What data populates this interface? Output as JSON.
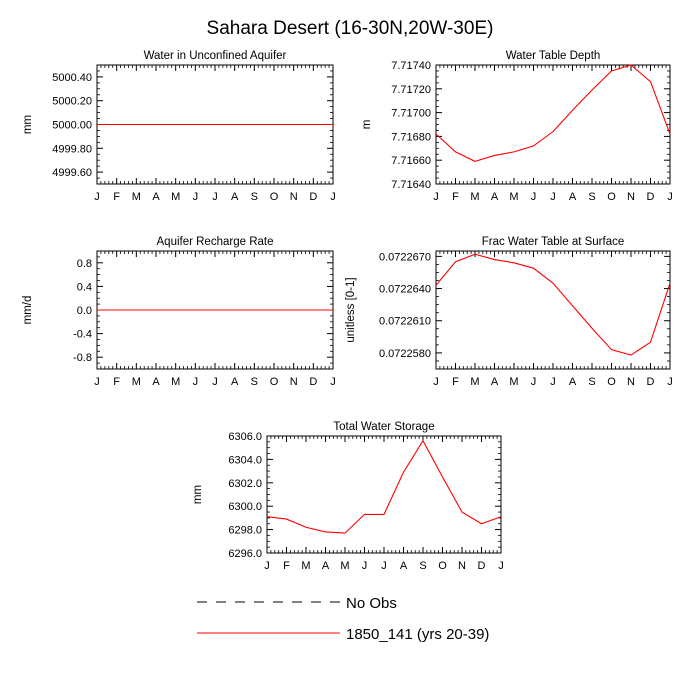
{
  "figure_title": "Sahara Desert (16-30N,20W-30E)",
  "legend": {
    "obs_label": "No Obs",
    "model_label": "1850_141 (yrs 20-39)",
    "model_color": "#ff0000",
    "obs_color": "#000000"
  },
  "chart_data": [
    {
      "type": "line",
      "title": "Water in Unconfined Aquifer",
      "ylabel": "mm",
      "categories": [
        "J",
        "F",
        "M",
        "A",
        "M",
        "J",
        "J",
        "A",
        "S",
        "O",
        "N",
        "D",
        "J"
      ],
      "yticks": [
        4999.6,
        4999.8,
        5000.0,
        5000.2,
        5000.4
      ],
      "ytick_labels": [
        "4999.60",
        "4999.80",
        "5000.00",
        "5000.20",
        "5000.40"
      ],
      "ylim": [
        4999.5,
        5000.5
      ],
      "series": [
        {
          "name": "1850_141 (yrs 20-39)",
          "values": [
            5000,
            5000,
            5000,
            5000,
            5000,
            5000,
            5000,
            5000,
            5000,
            5000,
            5000,
            5000,
            5000
          ]
        }
      ]
    },
    {
      "type": "line",
      "title": "Water Table Depth",
      "ylabel": "m",
      "categories": [
        "J",
        "F",
        "M",
        "A",
        "M",
        "J",
        "J",
        "A",
        "S",
        "O",
        "N",
        "D",
        "J"
      ],
      "yticks": [
        7.7164,
        7.7166,
        7.7168,
        7.717,
        7.7172,
        7.7174
      ],
      "ytick_labels": [
        "7.71640",
        "7.71660",
        "7.71680",
        "7.71700",
        "7.71720",
        "7.71740"
      ],
      "ylim": [
        7.7164,
        7.7174
      ],
      "series": [
        {
          "name": "1850_141 (yrs 20-39)",
          "values": [
            7.71682,
            7.71667,
            7.71659,
            7.71664,
            7.71667,
            7.71672,
            7.71684,
            7.71702,
            7.71719,
            7.71735,
            7.7174,
            7.71726,
            7.71682
          ]
        }
      ]
    },
    {
      "type": "line",
      "title": "Aquifer Recharge Rate",
      "ylabel": "mm/d",
      "categories": [
        "J",
        "F",
        "M",
        "A",
        "M",
        "J",
        "J",
        "A",
        "S",
        "O",
        "N",
        "D",
        "J"
      ],
      "yticks": [
        -0.8,
        -0.4,
        0.0,
        0.4,
        0.8
      ],
      "ytick_labels": [
        "-0.8",
        "-0.4",
        "0.0",
        "0.4",
        "0.8"
      ],
      "ylim": [
        -1.0,
        1.0
      ],
      "series": [
        {
          "name": "1850_141 (yrs 20-39)",
          "values": [
            0,
            0,
            0,
            0,
            0,
            0,
            0,
            0,
            0,
            0,
            0,
            0,
            0
          ]
        }
      ]
    },
    {
      "type": "line",
      "title": "Frac Water Table at Surface",
      "ylabel": "unitless [0-1]",
      "categories": [
        "J",
        "F",
        "M",
        "A",
        "M",
        "J",
        "J",
        "A",
        "S",
        "O",
        "N",
        "D",
        "J"
      ],
      "yticks": [
        0.072258,
        0.072261,
        0.072264,
        0.072267
      ],
      "ytick_labels": [
        "0.0722580",
        "0.0722610",
        "0.0722640",
        "0.0722670"
      ],
      "ylim": [
        0.0722565,
        0.0722675
      ],
      "series": [
        {
          "name": "1850_141 (yrs 20-39)",
          "values": [
            0.0722643,
            0.0722665,
            0.0722672,
            0.0722667,
            0.0722664,
            0.0722659,
            0.0722645,
            0.0722624,
            0.0722603,
            0.0722583,
            0.0722578,
            0.072259,
            0.0722645
          ]
        }
      ]
    },
    {
      "type": "line",
      "title": "Total Water Storage",
      "ylabel": "mm",
      "categories": [
        "J",
        "F",
        "M",
        "A",
        "M",
        "J",
        "J",
        "A",
        "S",
        "O",
        "N",
        "D",
        "J"
      ],
      "yticks": [
        6296,
        6298,
        6300,
        6302,
        6304,
        6306
      ],
      "ytick_labels": [
        "6296.0",
        "6298.0",
        "6300.0",
        "6302.0",
        "6304.0",
        "6306.0"
      ],
      "ylim": [
        6296,
        6306
      ],
      "series": [
        {
          "name": "1850_141 (yrs 20-39)",
          "values": [
            6299.1,
            6298.9,
            6298.2,
            6297.8,
            6297.7,
            6299.3,
            6299.3,
            6302.9,
            6305.6,
            6302.5,
            6299.5,
            6298.5,
            6299.1
          ]
        }
      ]
    }
  ]
}
